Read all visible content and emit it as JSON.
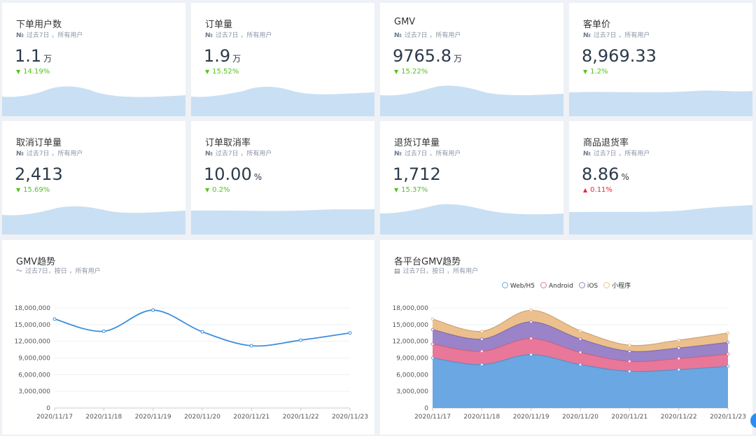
{
  "metrics": [
    {
      "title": "下单用户数",
      "icon": "№",
      "subtitle": "过去7日 ，所有用户",
      "value": "1.1",
      "unit": "万",
      "change": "14.19%",
      "direction": "down"
    },
    {
      "title": "订单量",
      "icon": "№",
      "subtitle": "过去7日 ，所有用户",
      "value": "1.9",
      "unit": "万",
      "change": "15.52%",
      "direction": "down"
    },
    {
      "title": "GMV",
      "icon": "№",
      "subtitle": "过去7日 ，所有用户",
      "value": "9765.8",
      "unit": "万",
      "change": "15.22%",
      "direction": "down"
    },
    {
      "title": "客单价",
      "icon": "№",
      "subtitle": "过去7日 ，所有用户",
      "value": "8,969.33",
      "unit": "",
      "change": "1.2%",
      "direction": "down"
    },
    {
      "title": "取消订单量",
      "icon": "№",
      "subtitle": "过去7日 ，所有用户",
      "value": "2,413",
      "unit": "",
      "change": "15.69%",
      "direction": "down"
    },
    {
      "title": "订单取消率",
      "icon": "№",
      "subtitle": "过去7日 ，所有用户",
      "value": "10.00",
      "unit": "%",
      "change": "0.2%",
      "direction": "down"
    },
    {
      "title": "退货订单量",
      "icon": "№",
      "subtitle": "过去7日 ，所有用户",
      "value": "1,712",
      "unit": "",
      "change": "15.37%",
      "direction": "down"
    },
    {
      "title": "商品退货率",
      "icon": "№",
      "subtitle": "过去7日 ，所有用户",
      "value": "8.86",
      "unit": "%",
      "change": "0.11%",
      "direction": "up"
    }
  ],
  "colors": {
    "wave": "#c9dff3",
    "down": "#52c41a",
    "up": "#f5222d",
    "line": "#3d8fdb"
  },
  "gmv_panel": {
    "title": "GMV趋势",
    "subtitle": "过去7日，按日 ，所有用户"
  },
  "platform_panel": {
    "title": "各平台GMV趋势",
    "subtitle": "过去7日，按日 ，所有用户"
  },
  "chart_data": [
    {
      "type": "line",
      "title": "GMV趋势",
      "categories": [
        "2020/11/17",
        "2020/11/18",
        "2020/11/19",
        "2020/11/20",
        "2020/11/21",
        "2020/11/22",
        "2020/11/23"
      ],
      "series": [
        {
          "values": [
            16000000,
            13800000,
            17600000,
            13700000,
            11200000,
            12200000,
            13500000
          ]
        }
      ],
      "yticks": [
        "0",
        "3,000,000",
        "6,000,000",
        "9,000,000",
        "12,000,000",
        "15,000,000",
        "18,000,000"
      ],
      "ylim": [
        0,
        18000000
      ],
      "grid": true
    },
    {
      "type": "area",
      "stacked": true,
      "title": "各平台GMV趋势",
      "categories": [
        "2020/11/17",
        "2020/11/18",
        "2020/11/19",
        "2020/11/20",
        "2020/11/21",
        "2020/11/22",
        "2020/11/23"
      ],
      "series": [
        {
          "name": "Web/H5",
          "color": "#6aa7e3",
          "values": [
            9000000,
            7800000,
            9600000,
            7800000,
            6600000,
            6900000,
            7500000
          ]
        },
        {
          "name": "Android",
          "color": "#e8779a",
          "values": [
            2500000,
            2400000,
            2900000,
            2200000,
            1800000,
            2000000,
            2200000
          ]
        },
        {
          "name": "iOS",
          "color": "#9a83c9",
          "values": [
            2600000,
            2200000,
            3000000,
            2400000,
            1800000,
            1900000,
            2100000
          ]
        },
        {
          "name": "小程序",
          "color": "#ecc08c",
          "values": [
            1900000,
            1400000,
            2100000,
            1500000,
            1100000,
            1400000,
            1700000
          ]
        }
      ],
      "yticks": [
        "0",
        "3,000,000",
        "6,000,000",
        "9,000,000",
        "12,000,000",
        "15,000,000",
        "18,000,000"
      ],
      "ylim": [
        0,
        18000000
      ],
      "legend": "top-center",
      "grid": true
    }
  ]
}
